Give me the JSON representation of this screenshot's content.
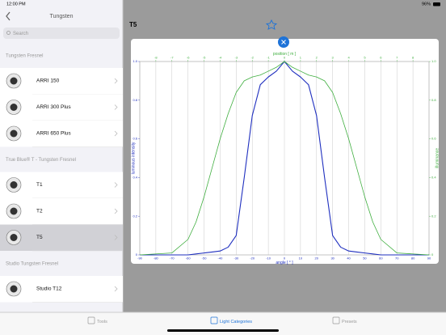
{
  "status_bar": {
    "time": "12:00 PM",
    "battery": "96%"
  },
  "sidebar": {
    "title": "Tungsten",
    "search_placeholder": "Search",
    "selected_item": [
      1,
      2
    ],
    "sections": [
      {
        "title": "Tungsten Fresnel",
        "items": [
          "ARRI 150",
          "ARRI 300 Plus",
          "ARRI 650 Plus"
        ]
      },
      {
        "title": "True Blue® T - Tungsten Fresnel",
        "items": [
          "T1",
          "T2",
          "T5"
        ]
      },
      {
        "title": "Studio Tungsten Fresnel",
        "items": [
          "Studio T12"
        ]
      }
    ]
  },
  "detail": {
    "title": "T5"
  },
  "chart_data": {
    "type": "line",
    "x_label": "angle [ ° ]",
    "x2_label": "position [ m ]",
    "y_label": "luminous intensity",
    "y2_label": "illuminance",
    "x": [
      -90,
      -70,
      -60,
      -55,
      -50,
      -45,
      -40,
      -35,
      -30,
      -25,
      -20,
      -15,
      -10,
      -5,
      0,
      5,
      10,
      15,
      20,
      25,
      30,
      35,
      40,
      45,
      50,
      55,
      60,
      70,
      90
    ],
    "series": [
      {
        "color": "#1f2fbf",
        "values": [
          0,
          0,
          0,
          0.005,
          0.01,
          0.015,
          0.02,
          0.04,
          0.1,
          0.4,
          0.72,
          0.88,
          0.92,
          0.95,
          1,
          0.95,
          0.92,
          0.88,
          0.72,
          0.4,
          0.1,
          0.04,
          0.02,
          0.015,
          0.01,
          0.005,
          0,
          0,
          0
        ]
      },
      {
        "color": "#3fae3f",
        "axis": "y2",
        "values": [
          0,
          0.01,
          0.08,
          0.17,
          0.3,
          0.45,
          0.6,
          0.73,
          0.84,
          0.9,
          0.92,
          0.93,
          0.95,
          0.97,
          1,
          0.97,
          0.95,
          0.93,
          0.92,
          0.9,
          0.84,
          0.73,
          0.6,
          0.45,
          0.3,
          0.17,
          0.08,
          0.01,
          0
        ]
      }
    ],
    "xlim": [
      -90,
      90
    ],
    "xticks": [
      -90,
      -80,
      -70,
      -60,
      -50,
      -40,
      -30,
      -20,
      -10,
      0,
      10,
      20,
      30,
      40,
      50,
      60,
      70,
      80,
      90
    ],
    "x2lim": [
      -9,
      9
    ],
    "x2ticks": [
      -8,
      -7,
      -6,
      -5,
      -4,
      -3,
      -2,
      -1,
      0,
      1,
      2,
      3,
      4,
      5,
      6,
      7,
      8
    ],
    "ylim": [
      0,
      1
    ],
    "yticks": [
      0,
      0.2,
      0.4,
      0.6,
      0.8,
      {
        "value": 1,
        "label": "1.0"
      }
    ],
    "y2lim": [
      0,
      1
    ],
    "y2ticks": [
      0,
      0.2,
      0.4,
      0.6,
      0.8,
      {
        "value": 1,
        "label": "1.0"
      }
    ],
    "grid": true
  },
  "tabs": {
    "items": [
      "Tools",
      "Light Categories",
      "Presets"
    ],
    "selected": 1
  }
}
